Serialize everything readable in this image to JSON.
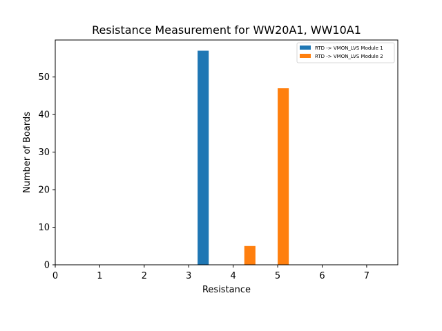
{
  "chart_data": {
    "type": "bar",
    "title": "Resistance Measurement for WW20A1, WW10A1",
    "xlabel": "Resistance",
    "ylabel": "Number of Boards",
    "xlim": [
      0,
      7.7
    ],
    "ylim": [
      0,
      59.85
    ],
    "xticks": [
      "0",
      "1",
      "2",
      "3",
      "4",
      "5",
      "6",
      "7"
    ],
    "yticks": [
      "0",
      "10",
      "20",
      "30",
      "40",
      "50"
    ],
    "bar_width": 0.25,
    "grid": false,
    "legend_position": "top-right",
    "series": [
      {
        "name": "RTD -> VMON_LVS Module 1",
        "color": "#1f77b4",
        "bars": [
          {
            "x_start": 3.2,
            "value": 57
          }
        ]
      },
      {
        "name": "RTD -> VMON_LVS Module 2",
        "color": "#ff7f0e",
        "bars": [
          {
            "x_start": 4.25,
            "value": 5
          },
          {
            "x_start": 5.0,
            "value": 47
          }
        ]
      }
    ]
  }
}
